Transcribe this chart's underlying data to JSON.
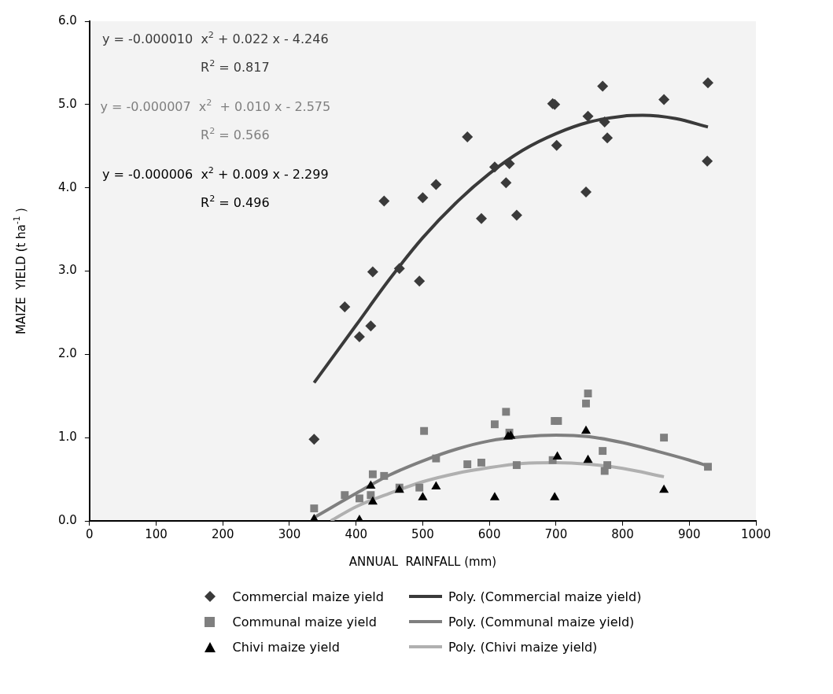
{
  "chart_data": {
    "type": "scatter",
    "xlabel": "ANNUAL  RAINFALL (mm)",
    "ylabel": "MAIZE  YIELD (t ha$^{-1}$ )",
    "xlim": [
      0,
      1000
    ],
    "xticks": [
      0,
      100,
      200,
      300,
      400,
      500,
      600,
      700,
      800,
      900,
      1000
    ],
    "ylim": [
      0,
      6
    ],
    "yticks": [
      {
        "value": 0,
        "label": "0.0"
      },
      {
        "value": 1,
        "label": "1.0"
      },
      {
        "value": 2,
        "label": "2.0"
      },
      {
        "value": 3,
        "label": "3.0"
      },
      {
        "value": 4,
        "label": "4.0"
      },
      {
        "value": 5,
        "label": "5.0"
      },
      {
        "value": 6,
        "label": "6.0"
      }
    ],
    "grid": false,
    "legend": "bottom",
    "annotations": [
      "y = -0.000010  x$^{2}$ + 0.022 x - 4.246",
      "R$^{2}$ = 0.817",
      "y = -0.000007  x$^{2}$  + 0.010 x - 2.575",
      "R$^{2}$ = 0.566",
      "y = -0.000006  x$^{2}$ + 0.009 x - 2.299",
      "R$^{2}$ = 0.496"
    ],
    "series": [
      {
        "name": "Commercial maize yield",
        "type": "scatter",
        "marker": "diamond",
        "color": "#3a3a3a",
        "x": [
          337,
          383,
          405,
          422,
          425,
          442,
          465,
          495,
          500,
          520,
          567,
          588,
          608,
          625,
          630,
          641,
          695,
          698,
          701,
          745,
          748,
          770,
          773,
          777,
          862,
          928,
          927
        ],
        "values": [
          0.98,
          2.57,
          2.21,
          2.34,
          2.99,
          3.84,
          3.03,
          2.88,
          3.88,
          4.04,
          4.61,
          3.63,
          4.25,
          4.06,
          4.29,
          3.67,
          5.01,
          5.0,
          4.51,
          3.95,
          4.86,
          5.22,
          4.79,
          4.6,
          5.06,
          5.26,
          4.32
        ]
      },
      {
        "name": "Communal maize yield",
        "type": "scatter",
        "marker": "square",
        "color": "#7f7f7f",
        "x": [
          337,
          383,
          405,
          422,
          425,
          442,
          465,
          495,
          502,
          520,
          567,
          588,
          608,
          625,
          630,
          641,
          695,
          698,
          703,
          745,
          748,
          770,
          773,
          777,
          862,
          928
        ],
        "values": [
          0.15,
          0.31,
          0.27,
          0.31,
          0.56,
          0.54,
          0.4,
          0.4,
          1.08,
          0.75,
          0.68,
          0.7,
          1.16,
          1.31,
          1.06,
          0.67,
          0.73,
          1.2,
          1.2,
          1.41,
          1.53,
          0.84,
          0.6,
          0.67,
          1.0,
          0.65
        ]
      },
      {
        "name": "Chivi maize yield",
        "type": "scatter",
        "marker": "triangle",
        "color": "#000000",
        "x": [
          337,
          405,
          422,
          425,
          465,
          500,
          520,
          608,
          628,
          632,
          698,
          702,
          745,
          748,
          862
        ],
        "values": [
          0.02,
          0.01,
          0.42,
          0.23,
          0.37,
          0.28,
          0.41,
          0.28,
          1.01,
          1.02,
          0.28,
          0.77,
          1.08,
          0.73,
          0.37
        ]
      },
      {
        "name": "Poly.  (Commercial maize yield)",
        "type": "line",
        "marker": "none",
        "color": "#3a3a3a",
        "x": [
          337,
          400,
          450,
          500,
          550,
          600,
          650,
          700,
          750,
          800,
          830,
          880,
          928
        ],
        "values": [
          1.66,
          2.35,
          2.9,
          3.4,
          3.82,
          4.17,
          4.45,
          4.65,
          4.79,
          4.86,
          4.87,
          4.83,
          4.73
        ]
      },
      {
        "name": "Poly.  (Communal maize yield)",
        "type": "line",
        "marker": "none",
        "color": "#7f7f7f",
        "x": [
          337,
          400,
          450,
          500,
          550,
          600,
          650,
          700,
          750,
          800,
          850,
          900,
          928
        ],
        "values": [
          0.04,
          0.33,
          0.55,
          0.72,
          0.86,
          0.96,
          1.01,
          1.03,
          1.01,
          0.94,
          0.84,
          0.73,
          0.66
        ]
      },
      {
        "name": "Poly.  (Chivi maize yield)",
        "type": "line",
        "marker": "none",
        "color": "#b0b0b0",
        "x": [
          362,
          400,
          450,
          500,
          550,
          600,
          650,
          700,
          750,
          800,
          862
        ],
        "values": [
          0.0,
          0.17,
          0.33,
          0.47,
          0.57,
          0.64,
          0.69,
          0.7,
          0.68,
          0.63,
          0.53
        ]
      }
    ]
  }
}
